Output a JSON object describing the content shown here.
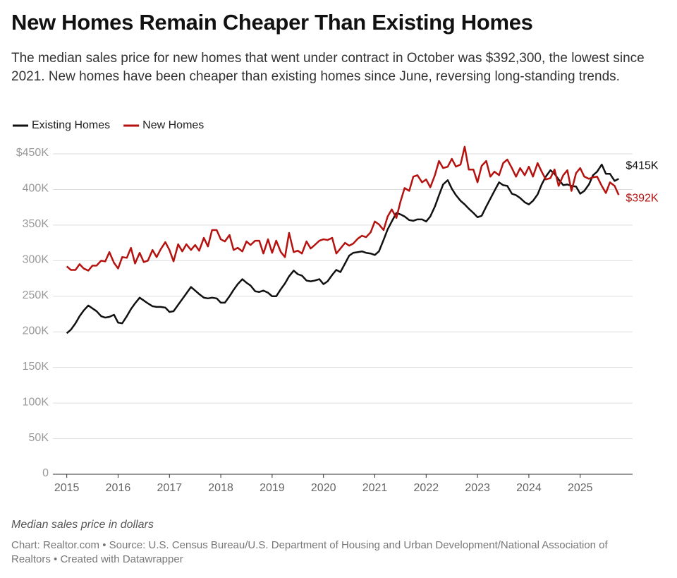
{
  "chart_data": {
    "type": "line",
    "title": "New Homes Remain Cheaper Than Existing Homes",
    "subtitle": "The median sales price for new homes that went under contract in October was $392,300, the lowest since 2021. New homes have been cheaper than existing homes since June, reversing long-standing trends.",
    "note": "Median sales price in dollars",
    "source": "Chart: Realtor.com • Source: U.S. Census Bureau/U.S. Department of Housing and Urban Development/National Association of Realtors • Created with Datawrapper",
    "x": [
      2015,
      2015.08,
      2015.17,
      2015.25,
      2015.33,
      2015.42,
      2015.5,
      2015.58,
      2015.67,
      2015.75,
      2015.83,
      2015.92,
      2016,
      2016.08,
      2016.17,
      2016.25,
      2016.33,
      2016.42,
      2016.5,
      2016.58,
      2016.67,
      2016.75,
      2016.83,
      2016.92,
      2017,
      2017.08,
      2017.17,
      2017.25,
      2017.33,
      2017.42,
      2017.5,
      2017.58,
      2017.67,
      2017.75,
      2017.83,
      2017.92,
      2018,
      2018.08,
      2018.17,
      2018.25,
      2018.33,
      2018.42,
      2018.5,
      2018.58,
      2018.67,
      2018.75,
      2018.83,
      2018.92,
      2019,
      2019.08,
      2019.17,
      2019.25,
      2019.33,
      2019.42,
      2019.5,
      2019.58,
      2019.67,
      2019.75,
      2019.83,
      2019.92,
      2020,
      2020.08,
      2020.17,
      2020.25,
      2020.33,
      2020.42,
      2020.5,
      2020.58,
      2020.67,
      2020.75,
      2020.83,
      2020.92,
      2021,
      2021.08,
      2021.17,
      2021.25,
      2021.33,
      2021.42,
      2021.5,
      2021.58,
      2021.67,
      2021.75,
      2021.83,
      2021.92,
      2022,
      2022.08,
      2022.17,
      2022.25,
      2022.33,
      2022.42,
      2022.5,
      2022.58,
      2022.67,
      2022.75,
      2022.83,
      2022.92,
      2023,
      2023.08,
      2023.17,
      2023.25,
      2023.33,
      2023.42,
      2023.5,
      2023.58,
      2023.67,
      2023.75,
      2023.83,
      2023.92,
      2024,
      2024.08,
      2024.17,
      2024.25,
      2024.33,
      2024.42,
      2024.5,
      2024.58,
      2024.67,
      2024.75,
      2024.83,
      2024.92,
      2025,
      2025.08,
      2025.17,
      2025.25,
      2025.33,
      2025.42,
      2025.5,
      2025.58,
      2025.67,
      2025.75
    ],
    "series": [
      {
        "name": "Existing Homes",
        "color": "#111111",
        "values": [
          198000,
          203000,
          212000,
          222000,
          230000,
          237000,
          233000,
          229000,
          222000,
          220000,
          221000,
          224000,
          213000,
          212000,
          222000,
          232000,
          240000,
          248000,
          244000,
          240000,
          236000,
          235000,
          235000,
          234000,
          228000,
          229000,
          238000,
          246000,
          254000,
          263000,
          258000,
          253000,
          248000,
          247000,
          248000,
          247000,
          241000,
          241000,
          250000,
          259000,
          267000,
          274000,
          269000,
          265000,
          257000,
          256000,
          258000,
          255000,
          250000,
          250000,
          260000,
          268000,
          278000,
          286000,
          281000,
          279000,
          272000,
          271000,
          272000,
          274000,
          267000,
          271000,
          280000,
          287000,
          284000,
          296000,
          307000,
          311000,
          312000,
          313000,
          311000,
          310000,
          308000,
          313000,
          329000,
          344000,
          355000,
          367000,
          365000,
          362000,
          357000,
          356000,
          358000,
          358000,
          355000,
          362000,
          376000,
          392000,
          407000,
          413000,
          401000,
          392000,
          384000,
          379000,
          373000,
          367000,
          361000,
          363000,
          376000,
          387000,
          398000,
          410000,
          406000,
          405000,
          394000,
          392000,
          388000,
          382000,
          379000,
          384000,
          393000,
          407000,
          418000,
          427000,
          422000,
          414000,
          406000,
          407000,
          405000,
          404000,
          394000,
          398000,
          407000,
          420000,
          425000,
          435000,
          422000,
          422000,
          412000,
          415000
        ]
      },
      {
        "name": "New Homes",
        "color": "#b5120f",
        "values": [
          292000,
          287000,
          287000,
          295000,
          289000,
          286000,
          293000,
          293000,
          300000,
          299000,
          312000,
          297000,
          289000,
          305000,
          304000,
          318000,
          296000,
          311000,
          298000,
          300000,
          315000,
          305000,
          316000,
          326000,
          315000,
          299000,
          323000,
          313000,
          323000,
          315000,
          322000,
          314000,
          332000,
          320000,
          343000,
          343000,
          330000,
          327000,
          336000,
          315000,
          318000,
          313000,
          327000,
          322000,
          328000,
          328000,
          310000,
          330000,
          311000,
          328000,
          312000,
          305000,
          339000,
          312000,
          314000,
          310000,
          327000,
          317000,
          322000,
          328000,
          330000,
          329000,
          332000,
          310000,
          317000,
          325000,
          321000,
          324000,
          331000,
          335000,
          333000,
          340000,
          355000,
          351000,
          343000,
          362000,
          372000,
          360000,
          383000,
          402000,
          398000,
          418000,
          420000,
          410000,
          414000,
          403000,
          420000,
          440000,
          430000,
          432000,
          443000,
          432000,
          435000,
          460000,
          428000,
          428000,
          410000,
          433000,
          440000,
          418000,
          425000,
          420000,
          437000,
          442000,
          430000,
          418000,
          430000,
          420000,
          432000,
          418000,
          437000,
          425000,
          414000,
          416000,
          428000,
          405000,
          420000,
          427000,
          398000,
          423000,
          430000,
          418000,
          415000,
          417000,
          418000,
          405000,
          395000,
          410000,
          405000,
          392300
        ]
      }
    ],
    "annotations": [
      {
        "text": "$415K",
        "x": 2025.75,
        "y": 415000,
        "color": "#111111"
      },
      {
        "text": "$392K",
        "x": 2025.75,
        "y": 392300,
        "color": "#b5120f"
      }
    ],
    "xlim": [
      2014.73,
      2026.02
    ],
    "xticks": [
      2015,
      2016,
      2017,
      2018,
      2019,
      2020,
      2021,
      2022,
      2023,
      2024,
      2025
    ],
    "ylim": [
      0,
      450000
    ],
    "yticks": [
      0,
      {
        "value": 50000,
        "label": "50K"
      },
      {
        "value": 100000,
        "label": "100K"
      },
      {
        "value": 150000,
        "label": "150K"
      },
      {
        "value": 200000,
        "label": "200K"
      },
      {
        "value": 250000,
        "label": "250K"
      },
      {
        "value": 300000,
        "label": "300K"
      },
      {
        "value": 350000,
        "label": "350K"
      },
      {
        "value": 400000,
        "label": "400K"
      },
      {
        "value": 450000,
        "label": "$450K"
      }
    ],
    "grid": true,
    "legend": "top-left"
  }
}
